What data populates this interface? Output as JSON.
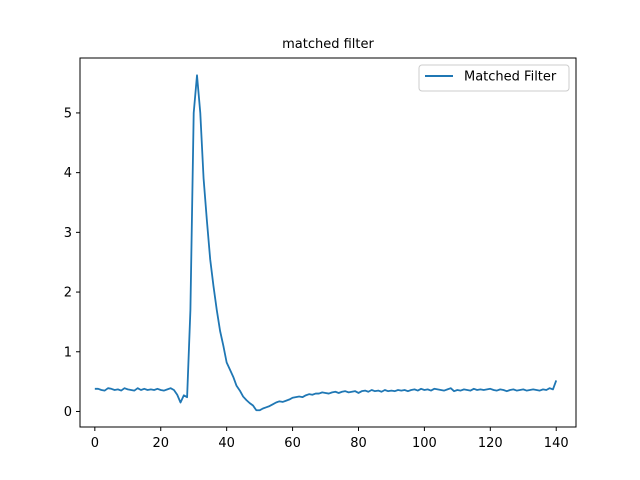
{
  "chart_data": {
    "type": "line",
    "title": "matched filter",
    "xlabel": "",
    "ylabel": "",
    "xlim": [
      -4.5,
      146
    ],
    "ylim": [
      -0.26,
      5.92
    ],
    "xticks": [
      0,
      20,
      40,
      60,
      80,
      100,
      120,
      140
    ],
    "yticks": [
      0,
      1,
      2,
      3,
      4,
      5
    ],
    "grid": false,
    "legend_position": "top-right",
    "colors": {
      "series": "#1f77b4",
      "axes": "#000000",
      "legend_border": "#cccccc"
    },
    "series": [
      {
        "name": "Matched Filter",
        "x": [
          0,
          1,
          2,
          3,
          4,
          5,
          6,
          7,
          8,
          9,
          10,
          11,
          12,
          13,
          14,
          15,
          16,
          17,
          18,
          19,
          20,
          21,
          22,
          23,
          24,
          25,
          26,
          27,
          28,
          29,
          30,
          31,
          32,
          33,
          34,
          35,
          36,
          37,
          38,
          39,
          40,
          41,
          42,
          43,
          44,
          45,
          46,
          47,
          48,
          49,
          50,
          51,
          52,
          53,
          54,
          55,
          56,
          57,
          58,
          59,
          60,
          61,
          62,
          63,
          64,
          65,
          66,
          67,
          68,
          69,
          70,
          71,
          72,
          73,
          74,
          75,
          76,
          77,
          78,
          79,
          80,
          81,
          82,
          83,
          84,
          85,
          86,
          87,
          88,
          89,
          90,
          91,
          92,
          93,
          94,
          95,
          96,
          97,
          98,
          99,
          100,
          101,
          102,
          103,
          104,
          105,
          106,
          107,
          108,
          109,
          110,
          111,
          112,
          113,
          114,
          115,
          116,
          117,
          118,
          119,
          120,
          121,
          122,
          123,
          124,
          125,
          126,
          127,
          128,
          129,
          130,
          131,
          132,
          133,
          134,
          135,
          136,
          137,
          138,
          139,
          140
        ],
        "y": [
          0.38,
          0.38,
          0.36,
          0.35,
          0.39,
          0.38,
          0.36,
          0.37,
          0.35,
          0.39,
          0.37,
          0.36,
          0.35,
          0.39,
          0.36,
          0.38,
          0.36,
          0.37,
          0.36,
          0.38,
          0.36,
          0.35,
          0.37,
          0.39,
          0.36,
          0.28,
          0.15,
          0.27,
          0.24,
          1.7,
          5.0,
          5.63,
          5.0,
          3.9,
          3.2,
          2.55,
          2.1,
          1.7,
          1.35,
          1.1,
          0.82,
          0.7,
          0.58,
          0.43,
          0.35,
          0.25,
          0.19,
          0.14,
          0.1,
          0.02,
          0.02,
          0.05,
          0.07,
          0.09,
          0.12,
          0.15,
          0.17,
          0.16,
          0.18,
          0.2,
          0.23,
          0.24,
          0.25,
          0.24,
          0.27,
          0.29,
          0.28,
          0.3,
          0.3,
          0.32,
          0.31,
          0.3,
          0.32,
          0.33,
          0.31,
          0.33,
          0.34,
          0.32,
          0.33,
          0.34,
          0.31,
          0.34,
          0.35,
          0.33,
          0.36,
          0.34,
          0.35,
          0.33,
          0.36,
          0.34,
          0.35,
          0.34,
          0.36,
          0.35,
          0.36,
          0.34,
          0.36,
          0.37,
          0.35,
          0.38,
          0.36,
          0.37,
          0.35,
          0.38,
          0.37,
          0.36,
          0.35,
          0.37,
          0.39,
          0.34,
          0.36,
          0.35,
          0.37,
          0.36,
          0.35,
          0.38,
          0.36,
          0.37,
          0.36,
          0.37,
          0.38,
          0.36,
          0.35,
          0.37,
          0.36,
          0.34,
          0.36,
          0.37,
          0.35,
          0.36,
          0.37,
          0.35,
          0.36,
          0.37,
          0.36,
          0.35,
          0.37,
          0.36,
          0.39,
          0.37,
          0.52
        ]
      }
    ]
  }
}
